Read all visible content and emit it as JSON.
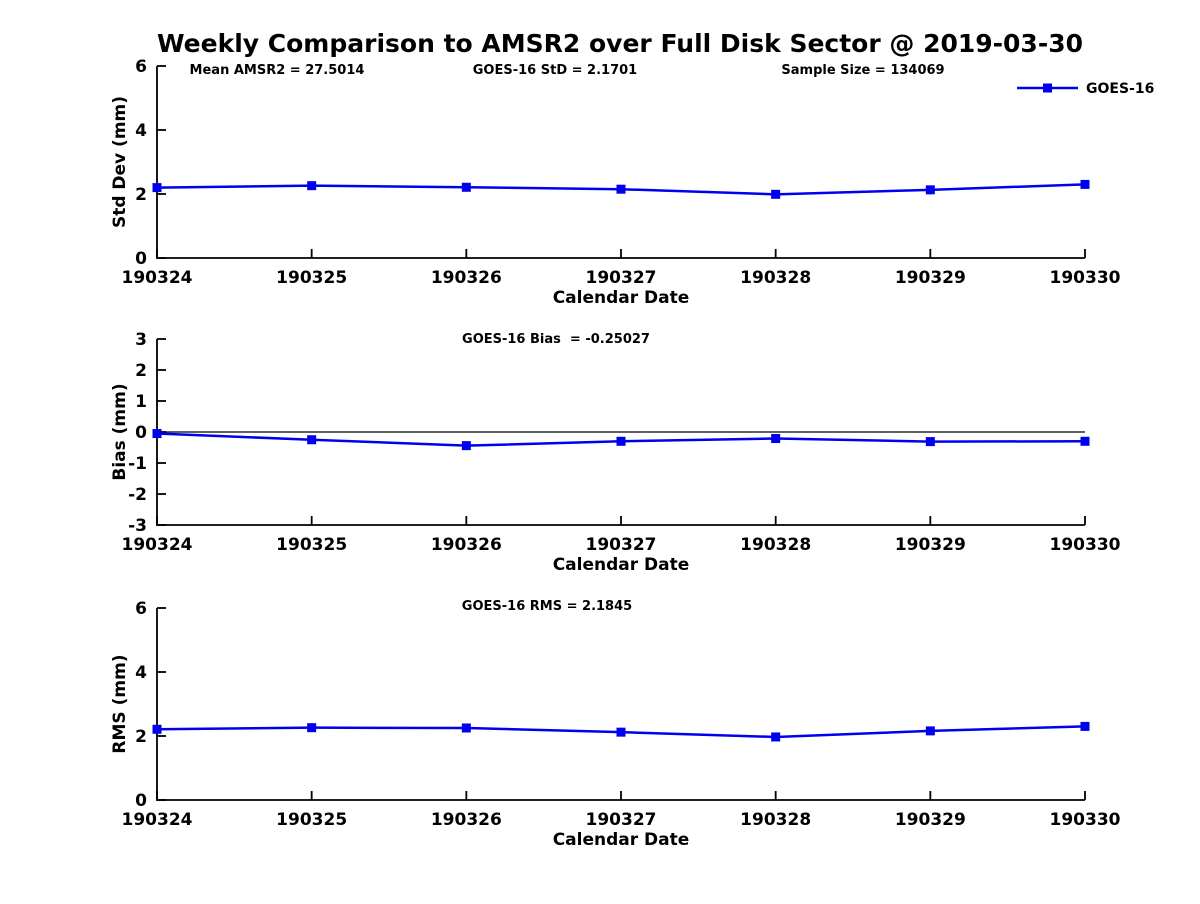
{
  "title": "Weekly Comparison to AMSR2 over Full Disk Sector @ 2019-03-30",
  "legend": {
    "label": "GOES-16"
  },
  "colors": {
    "series": "#0000EE",
    "axis": "#000000",
    "zero_line": "#000000",
    "background": "#FFFFFF"
  },
  "chart_data": [
    {
      "type": "line",
      "name": "std-dev",
      "ylabel": "Std Dev (mm)",
      "xlabel": "Calendar Date",
      "categories": [
        "190324",
        "190325",
        "190326",
        "190327",
        "190328",
        "190329",
        "190330"
      ],
      "series": [
        {
          "name": "GOES-16",
          "marker": "square",
          "values": [
            2.2,
            2.26,
            2.21,
            2.15,
            1.99,
            2.13,
            2.3
          ]
        }
      ],
      "ylim": [
        0,
        6
      ],
      "yticks": [
        0,
        2,
        4,
        6
      ],
      "grid": false,
      "legend_position": "top-right",
      "annotations": [
        "Mean AMSR2 = 27.5014",
        "GOES-16 StD = 2.1701",
        "Sample Size = 134069"
      ]
    },
    {
      "type": "line",
      "name": "bias",
      "ylabel": "Bias (mm)",
      "xlabel": "Calendar Date",
      "categories": [
        "190324",
        "190325",
        "190326",
        "190327",
        "190328",
        "190329",
        "190330"
      ],
      "series": [
        {
          "name": "GOES-16",
          "marker": "square",
          "values": [
            -0.05,
            -0.25,
            -0.44,
            -0.3,
            -0.21,
            -0.31,
            -0.3
          ]
        }
      ],
      "ylim": [
        -3,
        3
      ],
      "yticks": [
        -3,
        -2,
        -1,
        0,
        1,
        2,
        3
      ],
      "zero_line": true,
      "grid": false,
      "annotations": [
        "GOES-16 Bias  = -0.25027"
      ]
    },
    {
      "type": "line",
      "name": "rms",
      "ylabel": "RMS (mm)",
      "xlabel": "Calendar Date",
      "categories": [
        "190324",
        "190325",
        "190326",
        "190327",
        "190328",
        "190329",
        "190330"
      ],
      "series": [
        {
          "name": "GOES-16",
          "marker": "square",
          "values": [
            2.21,
            2.26,
            2.25,
            2.12,
            1.97,
            2.16,
            2.3
          ]
        }
      ],
      "ylim": [
        0,
        6
      ],
      "yticks": [
        0,
        2,
        4,
        6
      ],
      "grid": false,
      "annotations": [
        "GOES-16 RMS = 2.1845"
      ]
    }
  ]
}
